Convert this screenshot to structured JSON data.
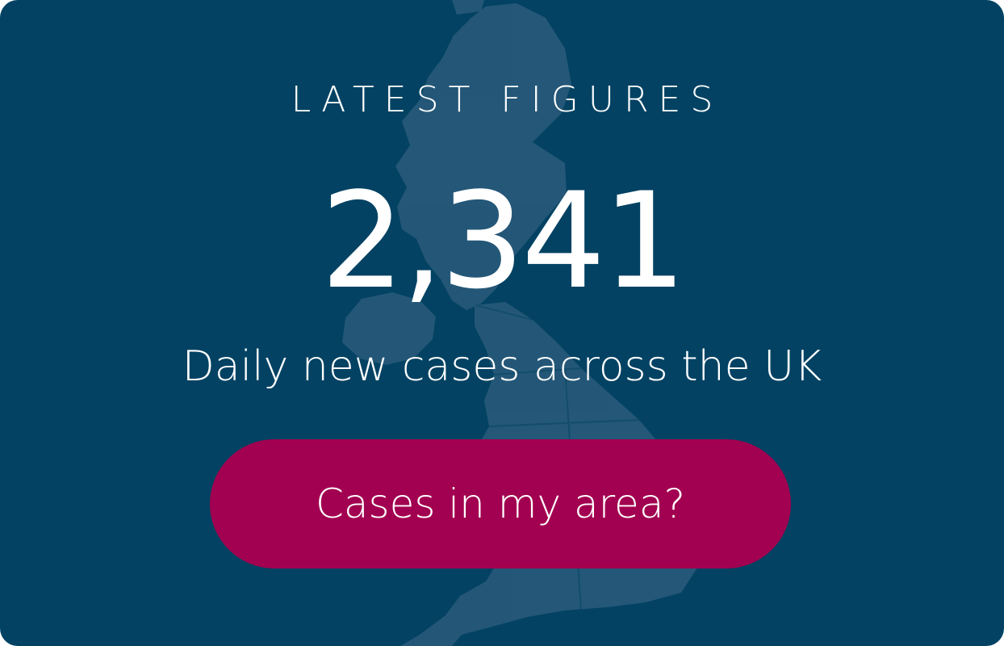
{
  "card": {
    "eyebrow": "LATEST FIGURES",
    "figure": "2,341",
    "description": "Daily new cases across the UK",
    "cta_label": "Cases in my area?"
  },
  "background_image": "uk-map-icon",
  "colors": {
    "background": "#034263",
    "map": "#2a5b7b",
    "button": "#a20050",
    "text": "#ffffff"
  }
}
